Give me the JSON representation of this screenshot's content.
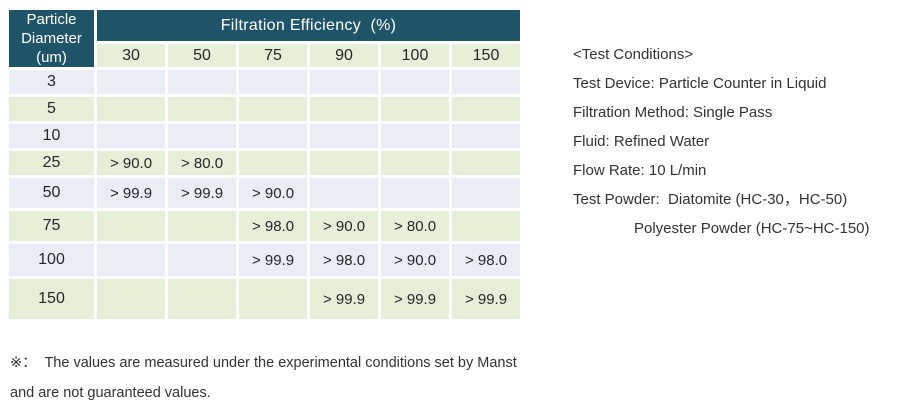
{
  "table": {
    "corner_lines": [
      "Particle",
      "Diameter",
      "(um)"
    ],
    "main_header": "Filtration Efficiency  (%)",
    "col_headers": [
      "30",
      "50",
      "75",
      "90",
      "100",
      "150"
    ],
    "rows": [
      {
        "label": "3",
        "values": [
          "",
          "",
          "",
          "",
          "",
          ""
        ]
      },
      {
        "label": "5",
        "values": [
          "",
          "",
          "",
          "",
          "",
          ""
        ]
      },
      {
        "label": "10",
        "values": [
          "",
          "",
          "",
          "",
          "",
          ""
        ]
      },
      {
        "label": "25",
        "values": [
          "> 90.0",
          "> 80.0",
          "",
          "",
          "",
          ""
        ]
      },
      {
        "label": "50",
        "values": [
          "> 99.9",
          "> 99.9",
          "> 90.0",
          "",
          "",
          ""
        ]
      },
      {
        "label": "75",
        "values": [
          "",
          "",
          "> 98.0",
          "> 90.0",
          "> 80.0",
          ""
        ]
      },
      {
        "label": "100",
        "values": [
          "",
          "",
          "> 99.9",
          "> 98.0",
          "> 90.0",
          "> 98.0"
        ]
      },
      {
        "label": "150",
        "values": [
          "",
          "",
          "",
          "> 99.9",
          "> 99.9",
          "> 99.9"
        ]
      }
    ]
  },
  "conditions": {
    "title": "<Test Conditions>",
    "lines": [
      {
        "text": "Test Device: Particle Counter in Liquid"
      },
      {
        "text": "Filtration Method: Single Pass"
      },
      {
        "text": "Fluid: Refined Water"
      },
      {
        "text": "Flow Rate: 10 L/min"
      },
      {
        "text": "Test Powder:  Diatomite (HC-30，HC-50)"
      },
      {
        "text": "Polyester Powder (HC-75~HC-150)"
      }
    ]
  },
  "note": {
    "line1": "※：  The values are measured under the experimental conditions set by Manst",
    "line2": "and are not guaranteed values."
  },
  "colors": {
    "header-bg": "#1F5468",
    "row-green": "#E6EFD8",
    "row-blue": "#E9EDF6",
    "header-text": "#FFFFFF",
    "text": "#333333",
    "cell-text": "#262626"
  }
}
